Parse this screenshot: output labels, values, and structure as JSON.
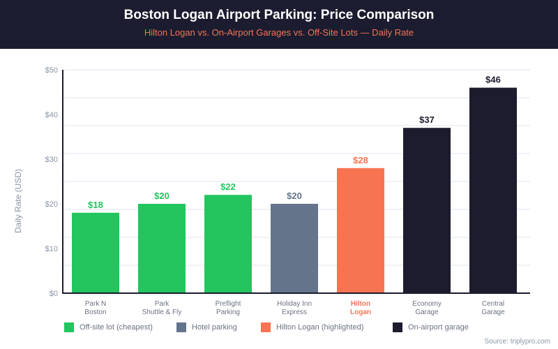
{
  "header": {
    "title": "Boston Logan Airport Parking: Price Comparison",
    "subtitle": "Hilton Logan vs. On-Airport Garages vs. Off-Site Lots — Daily Rate"
  },
  "colors": {
    "header_bg": "#1b1c2f",
    "offsite": "#22c55e",
    "hotel": "#64748b",
    "hilton": "#f77452",
    "onairport": "#1c1c2e",
    "grid": "#eef2f7",
    "axis": "#1c1c2e"
  },
  "chart_data": {
    "type": "bar",
    "title": "Boston Logan Airport Parking: Price Comparison",
    "subtitle": "Hilton Logan vs. On-Airport Garages vs. Off-Site Lots — Daily Rate",
    "xlabel": "",
    "ylabel": "Daily Rate (USD)",
    "ylim": [
      0,
      50
    ],
    "yticks": [
      0,
      10,
      20,
      30,
      40,
      50
    ],
    "ytick_labels": [
      "$0",
      "$10",
      "$20",
      "$30",
      "$40",
      "$50"
    ],
    "grid": true,
    "grid_step": 6.25,
    "categories": [
      [
        "Park N",
        "Boston"
      ],
      [
        "Park",
        "Shuttle & Fly"
      ],
      [
        "Preflight",
        "Parking"
      ],
      [
        "Holiday Inn",
        "Express"
      ],
      [
        "Hilton",
        "Logan"
      ],
      [
        "Economy",
        "Garage"
      ],
      [
        "Central",
        "Garage"
      ]
    ],
    "values": [
      18,
      20,
      22,
      20,
      28,
      37,
      46
    ],
    "value_labels": [
      "$18",
      "$20",
      "$22",
      "$20",
      "$28",
      "$37",
      "$46"
    ],
    "groups": [
      "offsite",
      "offsite",
      "offsite",
      "hotel",
      "hilton",
      "onairport",
      "onairport"
    ],
    "highlighted_index": 4,
    "legend_position": "bottom-left",
    "legend": [
      {
        "key": "offsite",
        "label": "Off-site lot (cheapest)"
      },
      {
        "key": "hotel",
        "label": "Hotel parking"
      },
      {
        "key": "hilton",
        "label": "Hilton Logan (highlighted)"
      },
      {
        "key": "onairport",
        "label": "On-airport garage"
      }
    ]
  },
  "source": "Source: triplypro.com"
}
